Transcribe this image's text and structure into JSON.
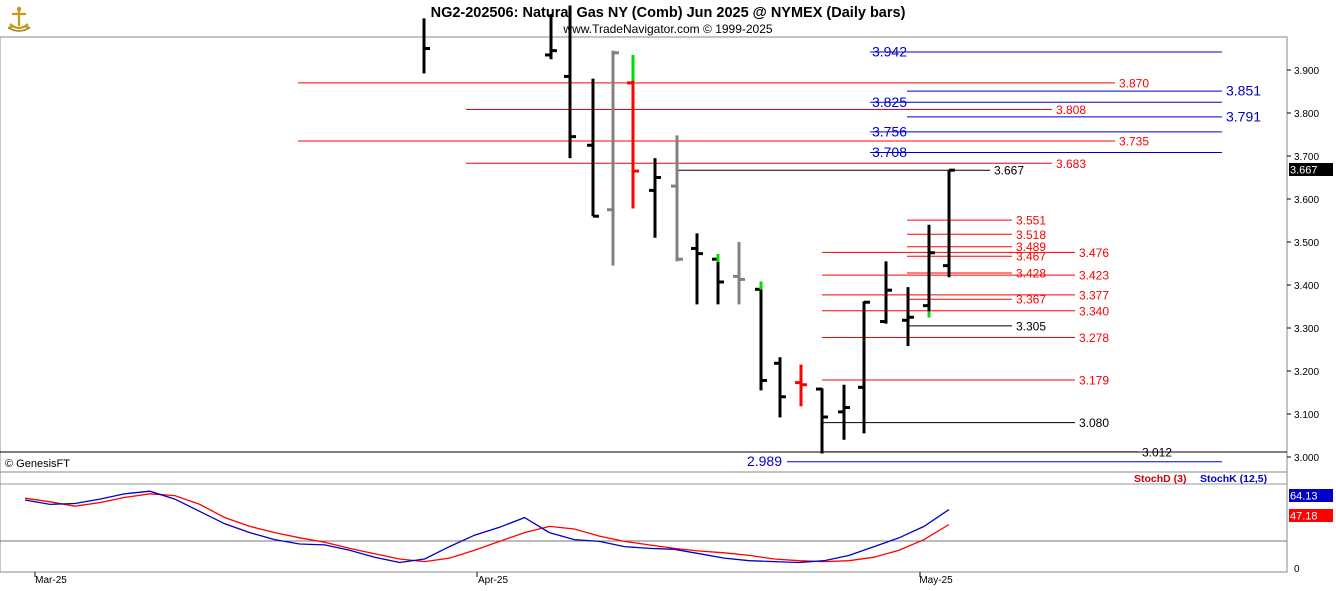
{
  "header": {
    "title": "NG2-202506:  Natural Gas NY (Comb) Jun 2025 @ NYMEX  (Daily bars)",
    "subtitle": "www.TradeNavigator.com © 1999-2025",
    "copyright": "© GenesisFT"
  },
  "colors": {
    "bar_black": "#000000",
    "bar_gray": "#808080",
    "bar_red": "#ff0000",
    "bar_green": "#00dd00",
    "level_red": "#ff0000",
    "level_blue": "#0000cc",
    "stoch_d": "#ff0000",
    "stoch_k": "#0000cc",
    "last_price_bg": "#000000",
    "stoch_k_tag_bg": "#0000cc",
    "stoch_d_tag_bg": "#ff0000"
  },
  "chart_data": [
    {
      "type": "ohlc",
      "x_labels": [
        "Mar-25",
        "Apr-25",
        "May-25"
      ],
      "ylim": [
        2.96,
        3.99
      ],
      "y_ticks": [
        "3.900",
        "3.800",
        "3.700",
        "3.600",
        "3.500",
        "3.400",
        "3.300",
        "3.200",
        "3.100",
        "3.000"
      ],
      "last_price": "3.667",
      "bars": [
        {
          "high": 4.02,
          "low": 3.892,
          "close": 3.95,
          "color": "black"
        },
        {
          "high": 4.03,
          "low": 3.925,
          "open": 3.935,
          "close": 3.945,
          "color": "black"
        },
        {
          "high": 4.05,
          "low": 3.695,
          "open": 3.885,
          "close": 3.745,
          "color": "black"
        },
        {
          "high": 3.88,
          "low": 3.56,
          "open": 3.725,
          "close": 3.56,
          "color": "black"
        },
        {
          "high": 3.945,
          "low": 3.445,
          "open": 3.575,
          "close": 3.94,
          "color": "gray"
        },
        {
          "high": 3.935,
          "low": 3.578,
          "open": 3.87,
          "close": 3.665,
          "color": "red",
          "wick_high": 3.935,
          "wick_mark": 3.875
        },
        {
          "high": 3.695,
          "low": 3.51,
          "open": 3.62,
          "close": 3.65,
          "color": "black"
        },
        {
          "high": 3.748,
          "low": 3.455,
          "open": 3.63,
          "close": 3.46,
          "color": "gray"
        },
        {
          "high": 3.52,
          "low": 3.355,
          "open": 3.485,
          "close": 3.473,
          "color": "black"
        },
        {
          "high": 3.472,
          "low": 3.355,
          "open": 3.46,
          "close": 3.407,
          "color": "black",
          "tip": "green"
        },
        {
          "high": 3.5,
          "low": 3.355,
          "open": 3.42,
          "close": 3.413,
          "color": "gray"
        },
        {
          "high": 3.408,
          "low": 3.155,
          "open": 3.39,
          "close": 3.178,
          "color": "black",
          "tip": "green"
        },
        {
          "high": 3.232,
          "low": 3.092,
          "open": 3.218,
          "close": 3.14,
          "color": "black"
        },
        {
          "high": 3.215,
          "low": 3.118,
          "open": 3.173,
          "close": 3.168,
          "color": "red"
        },
        {
          "high": 3.16,
          "low": 3.008,
          "open": 3.158,
          "close": 3.093,
          "color": "black"
        },
        {
          "high": 3.168,
          "low": 3.04,
          "open": 3.105,
          "close": 3.115,
          "color": "black"
        },
        {
          "high": 3.362,
          "low": 3.055,
          "open": 3.162,
          "close": 3.36,
          "color": "black"
        },
        {
          "high": 3.455,
          "low": 3.31,
          "open": 3.315,
          "close": 3.388,
          "color": "black"
        },
        {
          "high": 3.395,
          "low": 3.258,
          "open": 3.318,
          "close": 3.325,
          "color": "black"
        },
        {
          "high": 3.54,
          "low": 3.325,
          "open": 3.352,
          "close": 3.475,
          "color": "black",
          "tip_low": "green"
        },
        {
          "high": 3.667,
          "low": 3.418,
          "open": 3.445,
          "close": 3.667,
          "color": "black"
        }
      ],
      "levels": [
        {
          "value": "3.942",
          "color": "blue",
          "span": "mid"
        },
        {
          "value": "3.870",
          "color": "red",
          "span": "wide"
        },
        {
          "value": "3.851",
          "color": "blue",
          "span": "right"
        },
        {
          "value": "3.825",
          "color": "blue",
          "span": "mid"
        },
        {
          "value": "3.808",
          "color": "red",
          "span": "wide2"
        },
        {
          "value": "3.791",
          "color": "blue",
          "span": "right"
        },
        {
          "value": "3.756",
          "color": "blue",
          "span": "mid"
        },
        {
          "value": "3.735",
          "color": "red",
          "span": "wide"
        },
        {
          "value": "3.708",
          "color": "blue",
          "span": "mid"
        },
        {
          "value": "3.683",
          "color": "red",
          "span": "wide2"
        },
        {
          "value": "3.667",
          "color": "black",
          "span": "last"
        },
        {
          "value": "3.551",
          "color": "red",
          "span": "short"
        },
        {
          "value": "3.518",
          "color": "red",
          "span": "short"
        },
        {
          "value": "3.489",
          "color": "red",
          "span": "short"
        },
        {
          "value": "3.467",
          "color": "red",
          "span": "short"
        },
        {
          "value": "3.476",
          "color": "red",
          "span": "med"
        },
        {
          "value": "3.428",
          "color": "red",
          "span": "short"
        },
        {
          "value": "3.423",
          "color": "red",
          "span": "med"
        },
        {
          "value": "3.377",
          "color": "red",
          "span": "med"
        },
        {
          "value": "3.367",
          "color": "red",
          "span": "short"
        },
        {
          "value": "3.340",
          "color": "red",
          "span": "med"
        },
        {
          "value": "3.305",
          "color": "black",
          "span": "short"
        },
        {
          "value": "3.278",
          "color": "red",
          "span": "med"
        },
        {
          "value": "3.179",
          "color": "red",
          "span": "med"
        },
        {
          "value": "3.080",
          "color": "black",
          "span": "med"
        },
        {
          "value": "3.012",
          "color": "black",
          "span": "long"
        },
        {
          "value": "2.989",
          "color": "blue",
          "span": "blue_low"
        }
      ]
    },
    {
      "type": "line",
      "series": [
        {
          "name": "StochD (3)",
          "color": "red",
          "last": "47.18",
          "values": [
            77,
            73,
            68,
            72,
            78,
            82,
            80,
            70,
            55,
            45,
            38,
            32,
            27,
            20,
            14,
            8,
            5,
            9,
            18,
            28,
            38,
            45,
            42,
            34,
            28,
            24,
            20,
            17,
            15,
            12,
            8,
            6,
            5,
            6,
            10,
            18,
            30,
            47.18
          ]
        },
        {
          "name": "StochK (12,5)",
          "color": "blue",
          "last": "64.13",
          "values": [
            75,
            70,
            71,
            76,
            82,
            85,
            76,
            62,
            48,
            38,
            30,
            25,
            24,
            18,
            10,
            4,
            8,
            22,
            35,
            44,
            55,
            38,
            30,
            28,
            22,
            20,
            19,
            14,
            9,
            6,
            5,
            4,
            6,
            12,
            22,
            32,
            45,
            64.13
          ]
        }
      ],
      "ylim": [
        0,
        100
      ],
      "y_ticks": [
        "0"
      ]
    }
  ]
}
